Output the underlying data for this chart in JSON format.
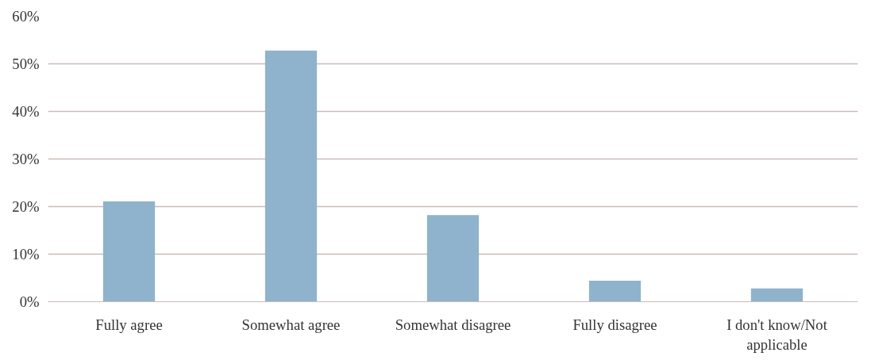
{
  "chart_data": {
    "type": "bar",
    "categories": [
      "Fully agree",
      "Somewhat agree",
      "Somewhat disagree",
      "Fully disagree",
      "I don't know/Not applicable"
    ],
    "values": [
      21.1,
      52.8,
      18.2,
      4.4,
      2.8
    ],
    "color": "#8fb3cc",
    "ylim": [
      0,
      60
    ],
    "yticks": [
      {
        "value": 0,
        "label": "0%"
      },
      {
        "value": 10,
        "label": "10%"
      },
      {
        "value": 20,
        "label": "20%"
      },
      {
        "value": 30,
        "label": "30%"
      },
      {
        "value": 40,
        "label": "40%"
      },
      {
        "value": 50,
        "label": "50%"
      },
      {
        "value": 60,
        "label": "60%"
      }
    ],
    "grid": "y"
  }
}
